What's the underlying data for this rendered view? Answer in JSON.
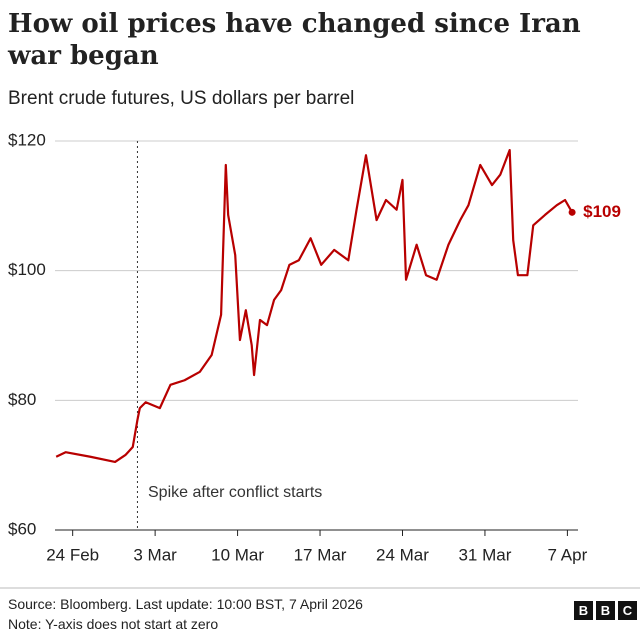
{
  "chart_data": {
    "type": "line",
    "title": "How oil prices have changed since Iran war began",
    "subtitle": "Brent crude futures, US dollars per barrel",
    "x": [
      -1.4,
      -0.6,
      1.5,
      3.6,
      4.5,
      5.1,
      5.5,
      5.7,
      6.2,
      7.4,
      8.3,
      9.5,
      10.8,
      11.8,
      12.6,
      13.0,
      13.2,
      13.8,
      14.2,
      14.7,
      15.2,
      15.4,
      15.9,
      16.5,
      17.1,
      17.7,
      18.4,
      19.2,
      20.2,
      21.1,
      22.2,
      23.4,
      24.1,
      24.9,
      25.8,
      26.6,
      27.5,
      28.0,
      28.3,
      29.2,
      30.0,
      30.9,
      31.9,
      32.9,
      33.6,
      34.6,
      35.6,
      36.3,
      37.1,
      37.4,
      37.8,
      38.6,
      39.1,
      40.1,
      41.1,
      41.8,
      42.4
    ],
    "series": [
      {
        "name": "Brent crude",
        "color": "#b80000",
        "values": [
          71.3,
          72.0,
          71.3,
          70.5,
          71.6,
          72.8,
          77.0,
          78.8,
          79.7,
          78.8,
          82.4,
          83.1,
          84.4,
          87.0,
          93.2,
          116.3,
          108.6,
          102.4,
          89.3,
          93.9,
          88.5,
          83.9,
          92.4,
          91.6,
          95.5,
          97.0,
          100.9,
          101.6,
          105.0,
          100.9,
          103.2,
          101.6,
          109.4,
          117.8,
          107.8,
          110.9,
          109.4,
          114.0,
          98.6,
          104.0,
          99.3,
          98.6,
          104.0,
          107.8,
          110.1,
          116.3,
          113.2,
          114.8,
          118.6,
          104.7,
          99.3,
          99.3,
          107.0,
          108.6,
          110.1,
          110.9,
          109.0
        ]
      }
    ],
    "end_label": {
      "value": 109,
      "label": "$109"
    },
    "xlim": [
      -1.5,
      42.9
    ],
    "xticks": [
      {
        "value": 0,
        "label": "24 Feb"
      },
      {
        "value": 7,
        "label": "3 Mar"
      },
      {
        "value": 14,
        "label": "10 Mar"
      },
      {
        "value": 21,
        "label": "17 Mar"
      },
      {
        "value": 28,
        "label": "24 Mar"
      },
      {
        "value": 35,
        "label": "31 Mar"
      },
      {
        "value": 42,
        "label": "7 Apr"
      }
    ],
    "ylim": [
      60,
      120
    ],
    "yticks": [
      {
        "value": 60,
        "label": "$60"
      },
      {
        "value": 80,
        "label": "$80"
      },
      {
        "value": 100,
        "label": "$100"
      },
      {
        "value": 120,
        "label": "$120"
      }
    ],
    "grid": true,
    "annotation": {
      "text": "Spike after conflict starts",
      "x": 5.5
    },
    "source": "Source: Bloomberg. Last update: 10:00 BST, 7 April 2026",
    "note": "Note: Y-axis does not start at zero"
  }
}
